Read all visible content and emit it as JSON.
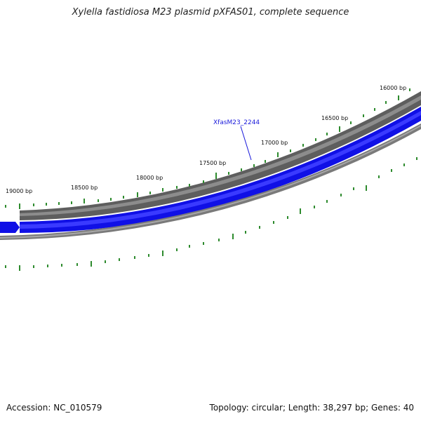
{
  "title": "Xylella fastidiosa M23 plasmid pXFAS01, complete sequence",
  "footer": {
    "accession": "Accession: NC_010579",
    "summary": "Topology: circular; Length: 38,297 bp; Genes: 40"
  },
  "colors": {
    "outer_ring": "#6b6b6b",
    "gene_forward": "#1010e6",
    "inner_ring": "#888888",
    "tick": "#2e8b2e",
    "gene_label": "#1a1adb"
  },
  "position_labels": [
    "16000 bp",
    "16500 bp",
    "17000 bp",
    "17500 bp",
    "18000 bp",
    "18500 bp",
    "19000 bp"
  ],
  "gene_label": "XfasM23_2244"
}
